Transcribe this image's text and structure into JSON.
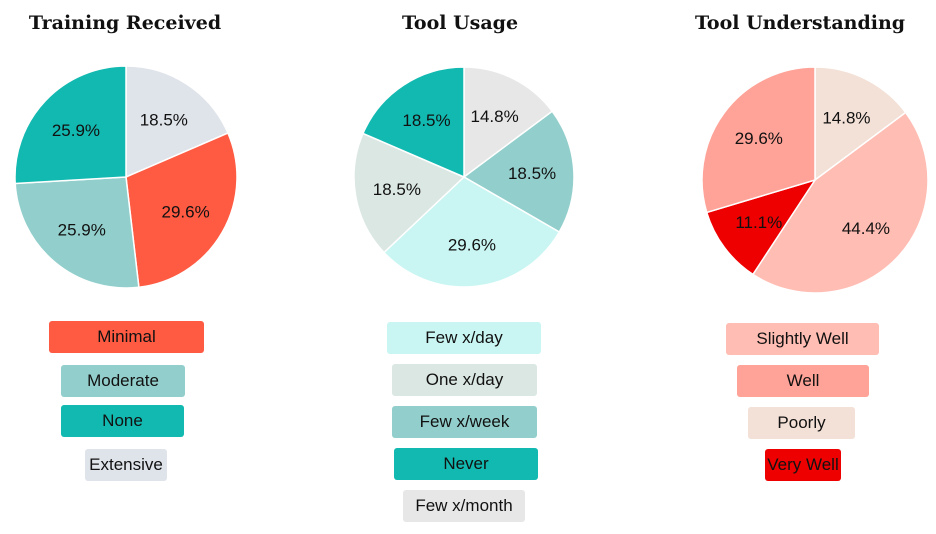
{
  "chart_data": [
    {
      "type": "pie",
      "title": "Training Received",
      "series": [
        {
          "name": "Extensive",
          "value": 18.5,
          "label": "18.5%",
          "color": "#dfe3ea"
        },
        {
          "name": "Minimal",
          "value": 29.6,
          "label": "29.6%",
          "color": "#ff5a42"
        },
        {
          "name": "Moderate",
          "value": 25.9,
          "label": "25.9%",
          "color": "#92cfcc"
        },
        {
          "name": "None",
          "value": 25.9,
          "label": "25.9%",
          "color": "#12b9b0"
        }
      ],
      "legend_order": [
        "Minimal",
        "Moderate",
        "None",
        "Extensive"
      ]
    },
    {
      "type": "pie",
      "title": "Tool Usage",
      "series": [
        {
          "name": "Few x/month",
          "value": 14.8,
          "label": "14.8%",
          "color": "#e7e7e7"
        },
        {
          "name": "Few x/week",
          "value": 18.5,
          "label": "18.5%",
          "color": "#92cfcc"
        },
        {
          "name": "Few x/day",
          "value": 29.6,
          "label": "29.6%",
          "color": "#c9f6f3"
        },
        {
          "name": "One x/day",
          "value": 18.5,
          "label": "18.5%",
          "color": "#dbe7e3"
        },
        {
          "name": "Never",
          "value": 18.5,
          "label": "18.5%",
          "color": "#12b9b0"
        }
      ],
      "legend_order": [
        "Few x/day",
        "One x/day",
        "Few x/week",
        "Never",
        "Few x/month"
      ]
    },
    {
      "type": "pie",
      "title": "Tool Understanding",
      "series": [
        {
          "name": "Poorly",
          "value": 14.8,
          "label": "14.8%",
          "color": "#f3e0d6"
        },
        {
          "name": "Slightly Well",
          "value": 44.4,
          "label": "44.4%",
          "color": "#ffbdb3"
        },
        {
          "name": "Very Well",
          "value": 11.1,
          "label": "11.1%",
          "color": "#ee0000"
        },
        {
          "name": "Well",
          "value": 29.6,
          "label": "29.6%",
          "color": "#ffa297"
        }
      ],
      "legend_order": [
        "Slightly Well",
        "Well",
        "Poorly",
        "Very Well"
      ]
    }
  ]
}
